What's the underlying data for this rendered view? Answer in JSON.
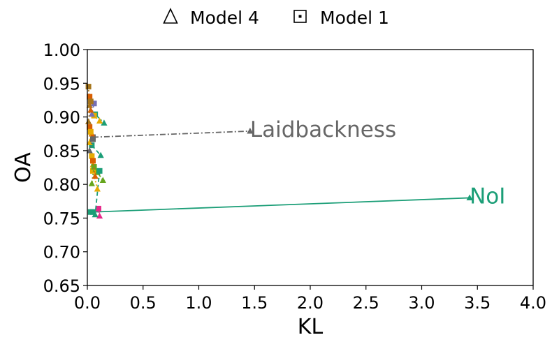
{
  "chart_data": {
    "type": "scatter",
    "xlabel": "KL",
    "ylabel": "OA",
    "xlim": [
      0.0,
      4.0
    ],
    "ylim": [
      0.65,
      1.0
    ],
    "x_ticks": [
      "0.0",
      "0.5",
      "1.0",
      "1.5",
      "2.0",
      "2.5",
      "3.0",
      "3.5",
      "4.0"
    ],
    "y_ticks": [
      "0.65",
      "0.70",
      "0.75",
      "0.80",
      "0.85",
      "0.90",
      "0.95",
      "1.00"
    ],
    "grid": false,
    "legend": {
      "placement": "top-center",
      "entries": [
        {
          "label": "Model 4",
          "marker": "triangle"
        },
        {
          "label": "Model 1",
          "marker": "square"
        }
      ]
    },
    "series": [
      {
        "name": "Laidbackness",
        "color": "#666666",
        "dash": "dash-dot",
        "label_anchor": [
          1.46,
          0.879
        ],
        "points": [
          {
            "x": 0.05,
            "y": 0.87,
            "marker": "square"
          },
          {
            "x": 1.46,
            "y": 0.879,
            "marker": "triangle"
          }
        ]
      },
      {
        "name": "NoI",
        "color": "#1b9e77",
        "dash": "solid",
        "label_anchor": [
          3.43,
          0.78
        ],
        "points": [
          {
            "x": 0.05,
            "y": 0.759,
            "marker": "square"
          },
          {
            "x": 3.43,
            "y": 0.78,
            "marker": "triangle"
          }
        ]
      },
      {
        "color": "#e7298a",
        "dash": "dashed",
        "points": [
          {
            "x": 0.1,
            "y": 0.764,
            "marker": "square"
          },
          {
            "x": 0.11,
            "y": 0.753,
            "marker": "triangle"
          }
        ]
      },
      {
        "color": "#66a61e",
        "dash": "dash-dot",
        "points": [
          {
            "x": 0.09,
            "y": 0.818,
            "marker": "square"
          },
          {
            "x": 0.14,
            "y": 0.806,
            "marker": "triangle"
          }
        ]
      },
      {
        "color": "#1b9e77",
        "dash": "dashed",
        "points": [
          {
            "x": 0.11,
            "y": 0.82,
            "marker": "square"
          },
          {
            "x": 0.07,
            "y": 0.755,
            "marker": "triangle"
          }
        ]
      },
      {
        "color": "#e6ab02",
        "dash": "dotted",
        "points": [
          {
            "x": 0.05,
            "y": 0.82,
            "marker": "square"
          },
          {
            "x": 0.09,
            "y": 0.793,
            "marker": "triangle"
          }
        ]
      },
      {
        "color": "#1b9e77",
        "dash": "dash-dot",
        "points": [
          {
            "x": 0.07,
            "y": 0.904,
            "marker": "square"
          },
          {
            "x": 0.15,
            "y": 0.891,
            "marker": "triangle"
          }
        ]
      },
      {
        "color": "#1b9e77",
        "dash": "dashed",
        "points": [
          {
            "x": 0.04,
            "y": 0.858,
            "marker": "square"
          },
          {
            "x": 0.12,
            "y": 0.843,
            "marker": "triangle"
          }
        ]
      },
      {
        "color": "#e6ab02",
        "dash": "dashed",
        "points": [
          {
            "x": 0.06,
            "y": 0.902,
            "marker": "square"
          },
          {
            "x": 0.11,
            "y": 0.894,
            "marker": "triangle"
          }
        ]
      },
      {
        "color": "#7570b3",
        "dash": "dashed",
        "points": [
          {
            "x": 0.06,
            "y": 0.92,
            "marker": "square"
          },
          {
            "x": 0.04,
            "y": 0.904,
            "marker": "triangle"
          }
        ]
      },
      {
        "color": "#a6761d",
        "dash": "dotted",
        "points": [
          {
            "x": 0.01,
            "y": 0.945,
            "marker": "square"
          },
          {
            "x": 0.02,
            "y": 0.917,
            "marker": "triangle"
          }
        ]
      },
      {
        "color": "#d95f02",
        "dash": "dotted",
        "points": [
          {
            "x": 0.02,
            "y": 0.93,
            "marker": "square"
          },
          {
            "x": 0.03,
            "y": 0.91,
            "marker": "triangle"
          }
        ]
      },
      {
        "color": "#a6761d",
        "dash": "dotted",
        "points": [
          {
            "x": 0.03,
            "y": 0.923,
            "marker": "square"
          },
          {
            "x": 0.01,
            "y": 0.893,
            "marker": "triangle"
          }
        ]
      },
      {
        "color": "#d95f02",
        "dash": "dotted",
        "points": [
          {
            "x": 0.02,
            "y": 0.885,
            "marker": "square"
          },
          {
            "x": 0.04,
            "y": 0.875,
            "marker": "triangle"
          }
        ]
      },
      {
        "color": "#e6ab02",
        "dash": "dotted",
        "points": [
          {
            "x": 0.03,
            "y": 0.878,
            "marker": "square"
          },
          {
            "x": 0.02,
            "y": 0.862,
            "marker": "triangle"
          }
        ]
      },
      {
        "color": "#666666",
        "dash": "dotted",
        "points": [
          {
            "x": 0.05,
            "y": 0.867,
            "marker": "square"
          },
          {
            "x": 0.02,
            "y": 0.85,
            "marker": "triangle"
          }
        ]
      },
      {
        "color": "#e6ab02",
        "dash": "dotted",
        "points": [
          {
            "x": 0.04,
            "y": 0.842,
            "marker": "square"
          },
          {
            "x": 0.05,
            "y": 0.829,
            "marker": "triangle"
          }
        ]
      },
      {
        "color": "#66a61e",
        "dash": "dotted",
        "points": [
          {
            "x": 0.06,
            "y": 0.826,
            "marker": "square"
          },
          {
            "x": 0.04,
            "y": 0.801,
            "marker": "triangle"
          }
        ]
      },
      {
        "color": "#d95f02",
        "dash": "dotted",
        "points": [
          {
            "x": 0.05,
            "y": 0.835,
            "marker": "square"
          },
          {
            "x": 0.07,
            "y": 0.812,
            "marker": "triangle"
          }
        ]
      },
      {
        "color": "#1b9e77",
        "dash": "solid",
        "points": [
          {
            "x": 0.03,
            "y": 0.759,
            "marker": "square"
          }
        ]
      }
    ]
  }
}
